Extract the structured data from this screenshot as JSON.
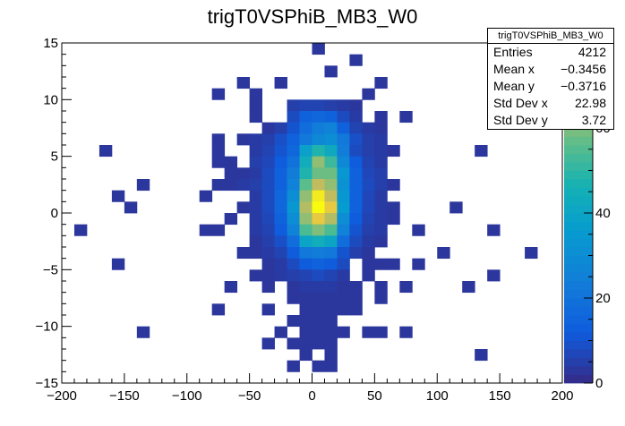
{
  "chart_data": {
    "type": "heatmap",
    "title": "trigT0VSPhiB_MB3_W0",
    "xlim": [
      -200,
      200
    ],
    "ylim": [
      -15,
      15
    ],
    "x_ticks": [
      "−200",
      "−150",
      "−100",
      "−50",
      "0",
      "50",
      "100",
      "150",
      "200"
    ],
    "y_ticks": [
      "−15",
      "−10",
      "−5",
      "0",
      "5",
      "10",
      "15"
    ],
    "colorbar_ticks": [
      "0",
      "20",
      "40",
      "60"
    ],
    "colorbar_max": 80,
    "colors": {
      "low": "#352a87",
      "mid": "#0ea5d0",
      "high": "#f9fb0e"
    },
    "stats": {
      "title": "trigT0VSPhiB_MB3_W0",
      "entries_label": "Entries",
      "entries": "4212",
      "meanx_label": "Mean x",
      "meanx": "−0.3456",
      "meany_label": "Mean y",
      "meany": "−0.3716",
      "stdx_label": "Std Dev x",
      "stdx": "22.98",
      "stdy_label": "Std Dev y",
      "stdy": "3.72"
    },
    "bin_width_x": 10,
    "bin_width_y": 1,
    "bins": [
      [
        0,
        14,
        3
      ],
      [
        30,
        13,
        3
      ],
      [
        10,
        12,
        3
      ],
      [
        -60,
        11,
        3
      ],
      [
        -30,
        11,
        3
      ],
      [
        50,
        11,
        3
      ],
      [
        -80,
        10,
        3
      ],
      [
        -50,
        10,
        3
      ],
      [
        40,
        10,
        3
      ],
      [
        -50,
        9,
        3
      ],
      [
        -20,
        9,
        5
      ],
      [
        -10,
        9,
        6
      ],
      [
        0,
        9,
        6
      ],
      [
        10,
        9,
        5
      ],
      [
        20,
        9,
        4
      ],
      [
        30,
        9,
        3
      ],
      [
        -50,
        8,
        3
      ],
      [
        -20,
        8,
        8
      ],
      [
        -10,
        8,
        14
      ],
      [
        0,
        8,
        16
      ],
      [
        10,
        8,
        14
      ],
      [
        20,
        8,
        8
      ],
      [
        30,
        8,
        4
      ],
      [
        50,
        8,
        3
      ],
      [
        70,
        8,
        3
      ],
      [
        -40,
        7,
        3
      ],
      [
        -30,
        7,
        5
      ],
      [
        -20,
        7,
        10
      ],
      [
        -10,
        7,
        18
      ],
      [
        0,
        7,
        24
      ],
      [
        10,
        7,
        26
      ],
      [
        20,
        7,
        14
      ],
      [
        30,
        7,
        6
      ],
      [
        40,
        7,
        4
      ],
      [
        50,
        7,
        3
      ],
      [
        -80,
        6,
        3
      ],
      [
        -60,
        6,
        3
      ],
      [
        -50,
        6,
        4
      ],
      [
        -40,
        6,
        5
      ],
      [
        -30,
        6,
        9
      ],
      [
        -20,
        6,
        14
      ],
      [
        -10,
        6,
        22
      ],
      [
        0,
        6,
        28
      ],
      [
        10,
        6,
        30
      ],
      [
        20,
        6,
        22
      ],
      [
        30,
        6,
        9
      ],
      [
        40,
        6,
        5
      ],
      [
        50,
        6,
        4
      ],
      [
        -170,
        5,
        3
      ],
      [
        -80,
        5,
        3
      ],
      [
        -50,
        5,
        4
      ],
      [
        -40,
        5,
        6
      ],
      [
        -30,
        5,
        10
      ],
      [
        -20,
        5,
        16
      ],
      [
        -10,
        5,
        38
      ],
      [
        0,
        5,
        48
      ],
      [
        10,
        5,
        42
      ],
      [
        20,
        5,
        24
      ],
      [
        30,
        5,
        8
      ],
      [
        40,
        5,
        5
      ],
      [
        50,
        5,
        4
      ],
      [
        60,
        5,
        3
      ],
      [
        130,
        5,
        3
      ],
      [
        -80,
        4,
        3
      ],
      [
        -70,
        4,
        3
      ],
      [
        -50,
        4,
        5
      ],
      [
        -40,
        4,
        7
      ],
      [
        -30,
        4,
        12
      ],
      [
        -20,
        4,
        20
      ],
      [
        -10,
        4,
        44
      ],
      [
        0,
        4,
        62
      ],
      [
        10,
        4,
        52
      ],
      [
        20,
        4,
        28
      ],
      [
        30,
        4,
        12
      ],
      [
        40,
        4,
        6
      ],
      [
        50,
        4,
        4
      ],
      [
        -70,
        3,
        3
      ],
      [
        -60,
        3,
        3
      ],
      [
        -50,
        3,
        4
      ],
      [
        -40,
        3,
        8
      ],
      [
        -30,
        3,
        14
      ],
      [
        -20,
        3,
        24
      ],
      [
        -10,
        3,
        48
      ],
      [
        0,
        3,
        58
      ],
      [
        10,
        3,
        58
      ],
      [
        20,
        3,
        34
      ],
      [
        30,
        3,
        14
      ],
      [
        40,
        3,
        7
      ],
      [
        50,
        3,
        5
      ],
      [
        -140,
        2,
        3
      ],
      [
        -80,
        2,
        3
      ],
      [
        -70,
        2,
        3
      ],
      [
        -60,
        2,
        4
      ],
      [
        -50,
        2,
        5
      ],
      [
        -40,
        2,
        8
      ],
      [
        -30,
        2,
        14
      ],
      [
        -20,
        2,
        26
      ],
      [
        -10,
        2,
        56
      ],
      [
        0,
        2,
        68
      ],
      [
        10,
        2,
        62
      ],
      [
        20,
        2,
        32
      ],
      [
        30,
        2,
        14
      ],
      [
        40,
        2,
        8
      ],
      [
        50,
        2,
        5
      ],
      [
        60,
        2,
        3
      ],
      [
        -160,
        1,
        3
      ],
      [
        -90,
        1,
        3
      ],
      [
        -50,
        1,
        4
      ],
      [
        -40,
        1,
        8
      ],
      [
        -30,
        1,
        16
      ],
      [
        -20,
        1,
        30
      ],
      [
        -10,
        1,
        62
      ],
      [
        0,
        1,
        78
      ],
      [
        10,
        1,
        68
      ],
      [
        20,
        1,
        34
      ],
      [
        30,
        1,
        14
      ],
      [
        40,
        1,
        7
      ],
      [
        50,
        1,
        4
      ],
      [
        -150,
        0,
        3
      ],
      [
        -60,
        0,
        3
      ],
      [
        -50,
        0,
        4
      ],
      [
        -40,
        0,
        8
      ],
      [
        -30,
        0,
        16
      ],
      [
        -20,
        0,
        34
      ],
      [
        -10,
        0,
        66
      ],
      [
        0,
        0,
        86
      ],
      [
        10,
        0,
        74
      ],
      [
        20,
        0,
        36
      ],
      [
        30,
        0,
        14
      ],
      [
        40,
        0,
        7
      ],
      [
        50,
        0,
        4
      ],
      [
        60,
        0,
        3
      ],
      [
        110,
        0,
        3
      ],
      [
        -70,
        -1,
        3
      ],
      [
        -50,
        -1,
        4
      ],
      [
        -40,
        -1,
        7
      ],
      [
        -30,
        -1,
        14
      ],
      [
        -20,
        -1,
        30
      ],
      [
        -10,
        -1,
        62
      ],
      [
        0,
        -1,
        74
      ],
      [
        10,
        -1,
        66
      ],
      [
        20,
        -1,
        30
      ],
      [
        30,
        -1,
        12
      ],
      [
        40,
        -1,
        6
      ],
      [
        50,
        -1,
        4
      ],
      [
        60,
        -1,
        3
      ],
      [
        -190,
        -2,
        3
      ],
      [
        -90,
        -2,
        3
      ],
      [
        -80,
        -2,
        3
      ],
      [
        -50,
        -2,
        4
      ],
      [
        -40,
        -2,
        6
      ],
      [
        -30,
        -2,
        12
      ],
      [
        -20,
        -2,
        26
      ],
      [
        -10,
        -2,
        54
      ],
      [
        0,
        -2,
        60
      ],
      [
        10,
        -2,
        54
      ],
      [
        20,
        -2,
        26
      ],
      [
        30,
        -2,
        10
      ],
      [
        40,
        -2,
        5
      ],
      [
        50,
        -2,
        4
      ],
      [
        80,
        -2,
        3
      ],
      [
        140,
        -2,
        3
      ],
      [
        -50,
        -3,
        3
      ],
      [
        -40,
        -3,
        5
      ],
      [
        -30,
        -3,
        9
      ],
      [
        -20,
        -3,
        18
      ],
      [
        -10,
        -3,
        40
      ],
      [
        0,
        -3,
        44
      ],
      [
        10,
        -3,
        40
      ],
      [
        20,
        -3,
        18
      ],
      [
        30,
        -3,
        8
      ],
      [
        40,
        -3,
        4
      ],
      [
        50,
        -3,
        3
      ],
      [
        -60,
        -4,
        3
      ],
      [
        -50,
        -4,
        3
      ],
      [
        -40,
        -4,
        4
      ],
      [
        -30,
        -4,
        6
      ],
      [
        -20,
        -4,
        12
      ],
      [
        -10,
        -4,
        22
      ],
      [
        0,
        -4,
        24
      ],
      [
        10,
        -4,
        22
      ],
      [
        20,
        -4,
        10
      ],
      [
        30,
        -4,
        5
      ],
      [
        40,
        -4,
        3
      ],
      [
        100,
        -4,
        3
      ],
      [
        170,
        -4,
        3
      ],
      [
        -160,
        -5,
        3
      ],
      [
        -40,
        -5,
        3
      ],
      [
        -30,
        -5,
        4
      ],
      [
        -20,
        -5,
        8
      ],
      [
        -10,
        -5,
        12
      ],
      [
        0,
        -5,
        14
      ],
      [
        10,
        -5,
        12
      ],
      [
        20,
        -5,
        8
      ],
      [
        40,
        -5,
        3
      ],
      [
        50,
        -5,
        3
      ],
      [
        60,
        -5,
        3
      ],
      [
        80,
        -5,
        3
      ],
      [
        -50,
        -6,
        3
      ],
      [
        -40,
        -6,
        3
      ],
      [
        -30,
        -6,
        4
      ],
      [
        -20,
        -6,
        5
      ],
      [
        -10,
        -6,
        6
      ],
      [
        0,
        -6,
        8
      ],
      [
        10,
        -6,
        6
      ],
      [
        20,
        -6,
        4
      ],
      [
        40,
        -6,
        3
      ],
      [
        140,
        -6,
        3
      ],
      [
        -70,
        -7,
        3
      ],
      [
        -40,
        -7,
        3
      ],
      [
        -20,
        -7,
        3
      ],
      [
        -10,
        -7,
        4
      ],
      [
        0,
        -7,
        4
      ],
      [
        10,
        -7,
        4
      ],
      [
        20,
        -7,
        3
      ],
      [
        30,
        -7,
        3
      ],
      [
        50,
        -7,
        3
      ],
      [
        70,
        -7,
        3
      ],
      [
        120,
        -7,
        3
      ],
      [
        -20,
        -8,
        3
      ],
      [
        -10,
        -8,
        3
      ],
      [
        0,
        -8,
        3
      ],
      [
        10,
        -8,
        3
      ],
      [
        20,
        -8,
        3
      ],
      [
        30,
        -8,
        3
      ],
      [
        50,
        -8,
        3
      ],
      [
        -80,
        -9,
        3
      ],
      [
        -40,
        -9,
        3
      ],
      [
        -10,
        -9,
        3
      ],
      [
        0,
        -9,
        3
      ],
      [
        10,
        -9,
        3
      ],
      [
        20,
        -9,
        3
      ],
      [
        30,
        -9,
        3
      ],
      [
        -20,
        -10,
        3
      ],
      [
        -10,
        -10,
        3
      ],
      [
        0,
        -10,
        3
      ],
      [
        10,
        -10,
        3
      ],
      [
        -140,
        -11,
        3
      ],
      [
        -30,
        -11,
        3
      ],
      [
        -10,
        -11,
        3
      ],
      [
        0,
        -11,
        3
      ],
      [
        10,
        -11,
        3
      ],
      [
        20,
        -11,
        3
      ],
      [
        40,
        -11,
        3
      ],
      [
        50,
        -11,
        3
      ],
      [
        70,
        -11,
        3
      ],
      [
        -40,
        -12,
        3
      ],
      [
        -20,
        -12,
        3
      ],
      [
        -10,
        -12,
        3
      ],
      [
        0,
        -12,
        3
      ],
      [
        10,
        -12,
        3
      ],
      [
        -10,
        -13,
        3
      ],
      [
        10,
        -13,
        3
      ],
      [
        130,
        -13,
        3
      ],
      [
        -20,
        -14,
        3
      ],
      [
        0,
        -14,
        3
      ],
      [
        10,
        -14,
        3
      ]
    ]
  }
}
